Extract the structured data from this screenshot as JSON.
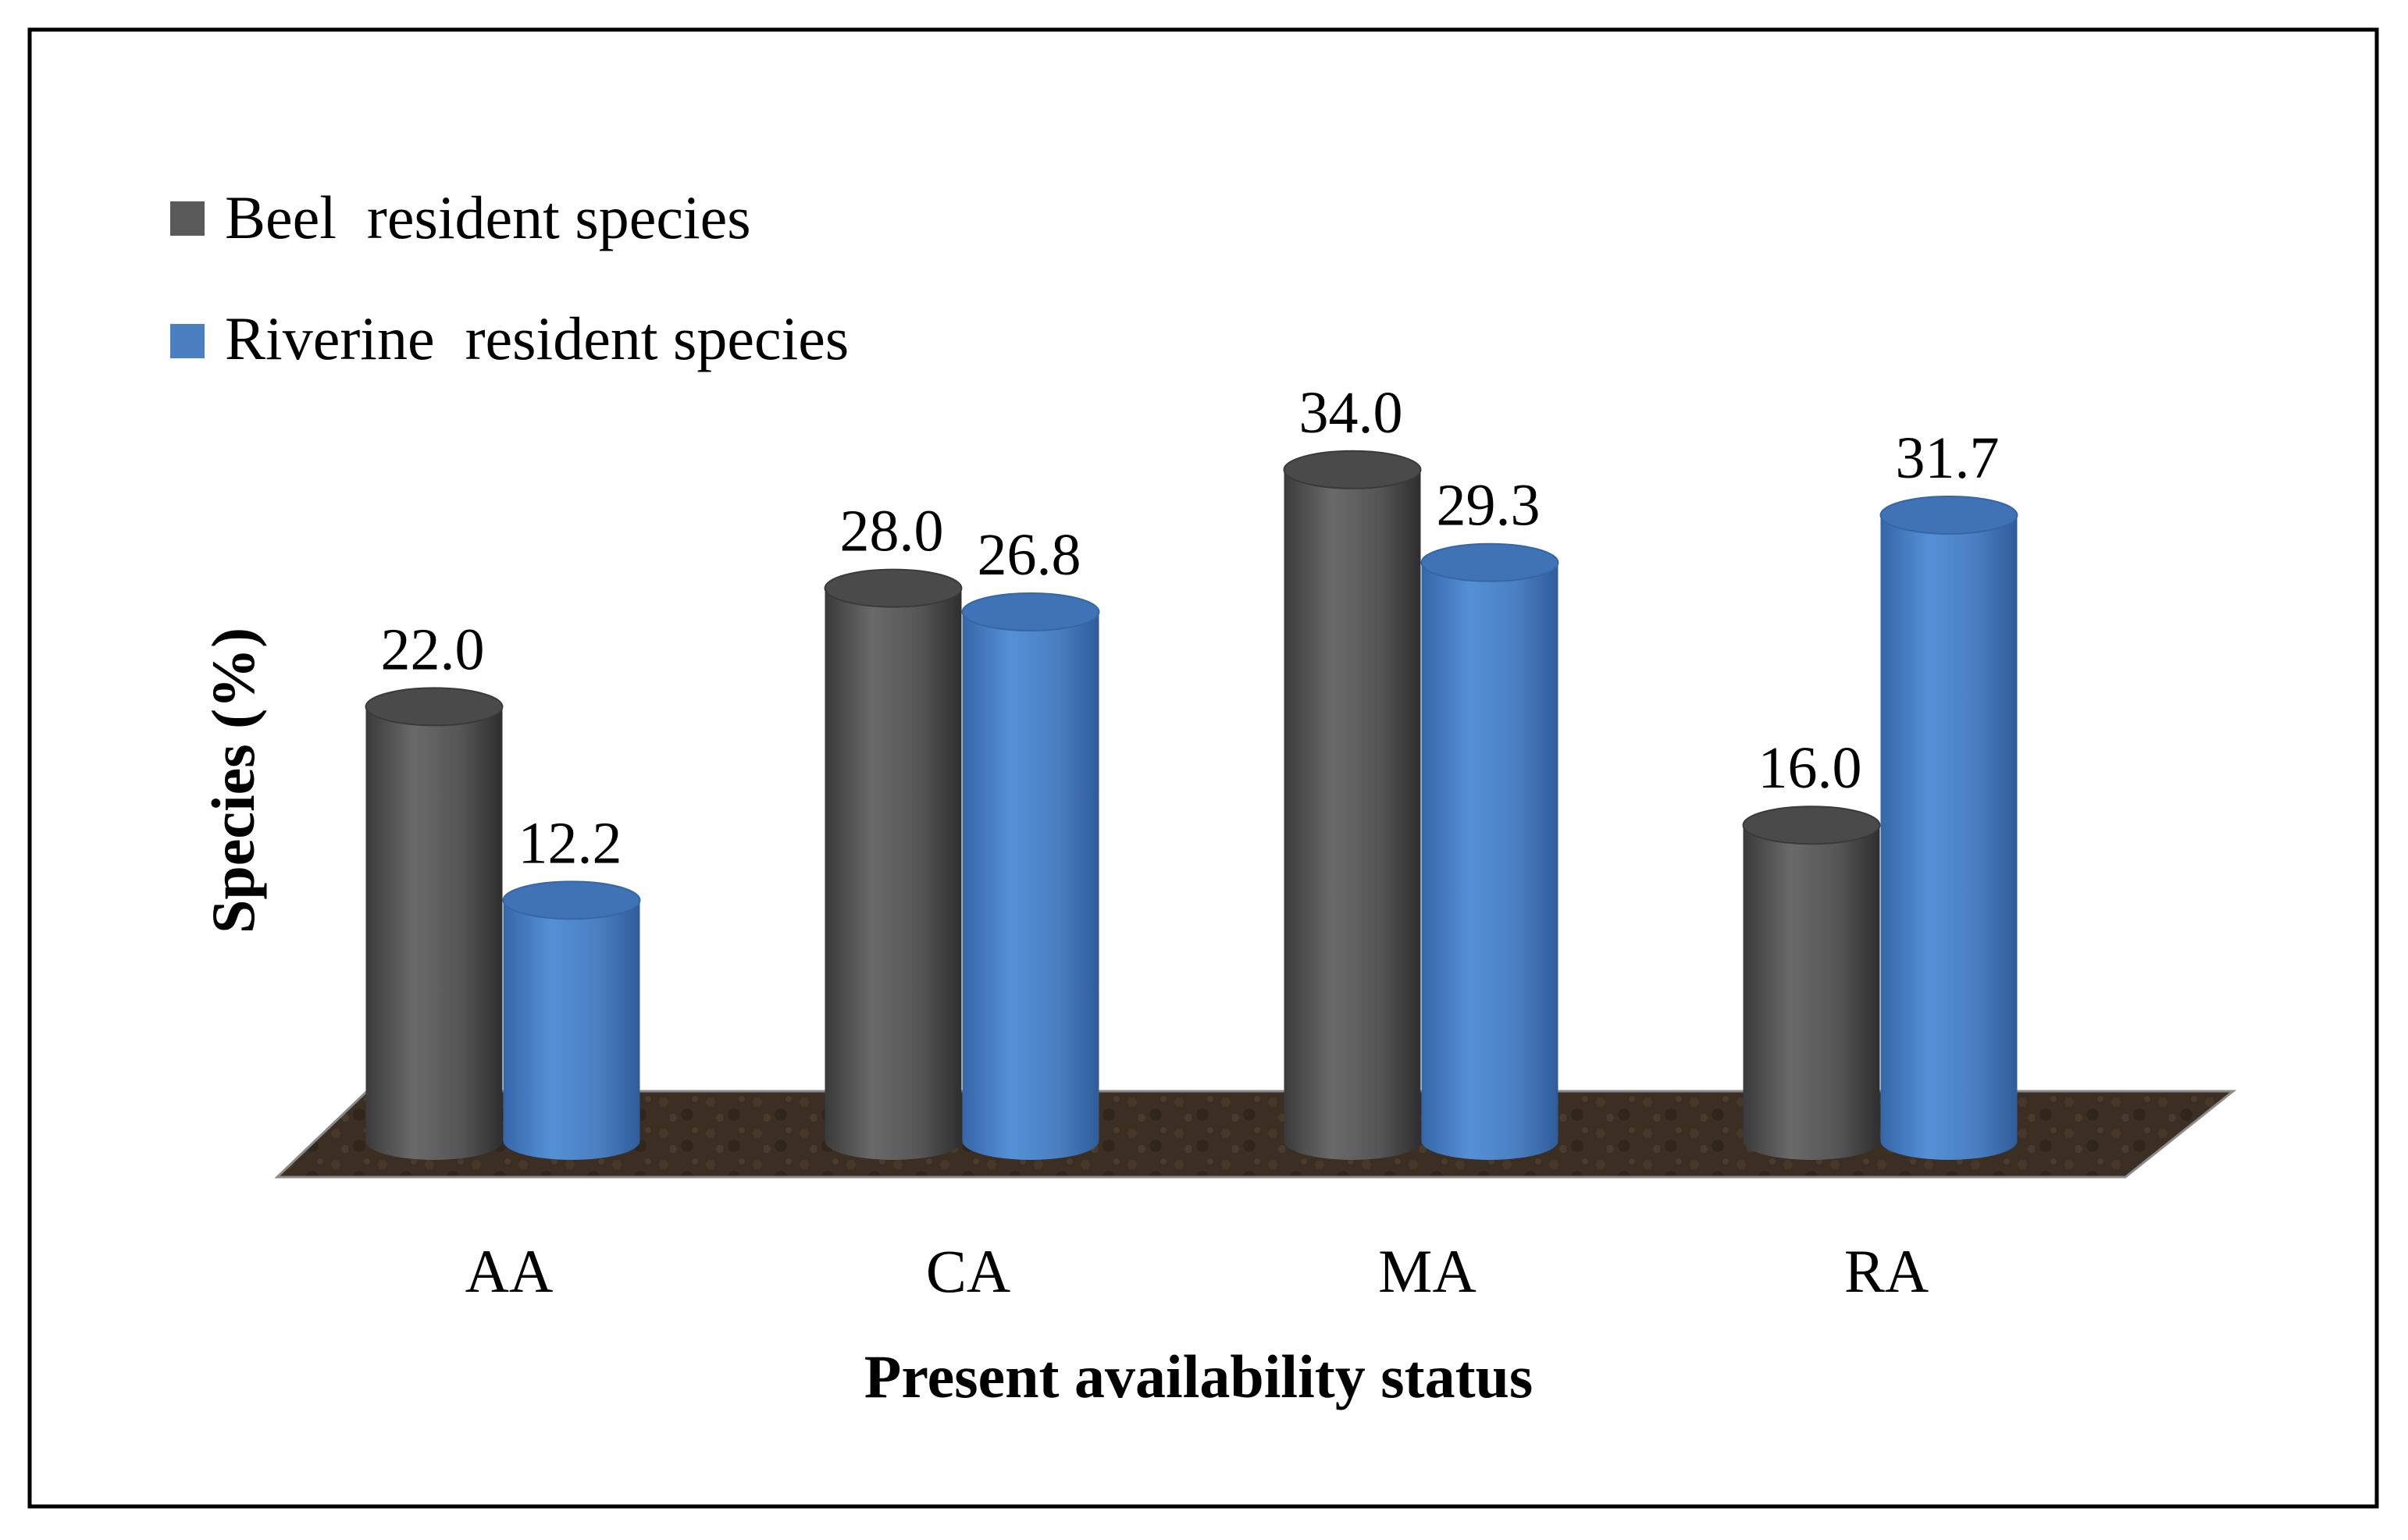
{
  "chart_data": {
    "type": "bar",
    "subtype": "3d-cylinder",
    "title": "",
    "xlabel": "Present availability status",
    "ylabel": "Species (%)",
    "categories": [
      "AA",
      "CA",
      "MA",
      "RA"
    ],
    "series": [
      {
        "name": "Beel  resident species",
        "values": [
          22.0,
          28.0,
          34.0,
          16.0
        ],
        "labels": [
          "22.0",
          "28.0",
          "34.0",
          "16.0"
        ],
        "color": "#595959"
      },
      {
        "name": "Riverine  resident species",
        "values": [
          12.2,
          26.8,
          29.3,
          31.7
        ],
        "labels": [
          "12.2",
          "26.8",
          "29.3",
          "31.7"
        ],
        "color": "#4a7fc1"
      }
    ],
    "ylim": [
      0,
      40
    ],
    "grid": false,
    "legend_position": "top-left",
    "floor_color": "#3b2e22"
  }
}
